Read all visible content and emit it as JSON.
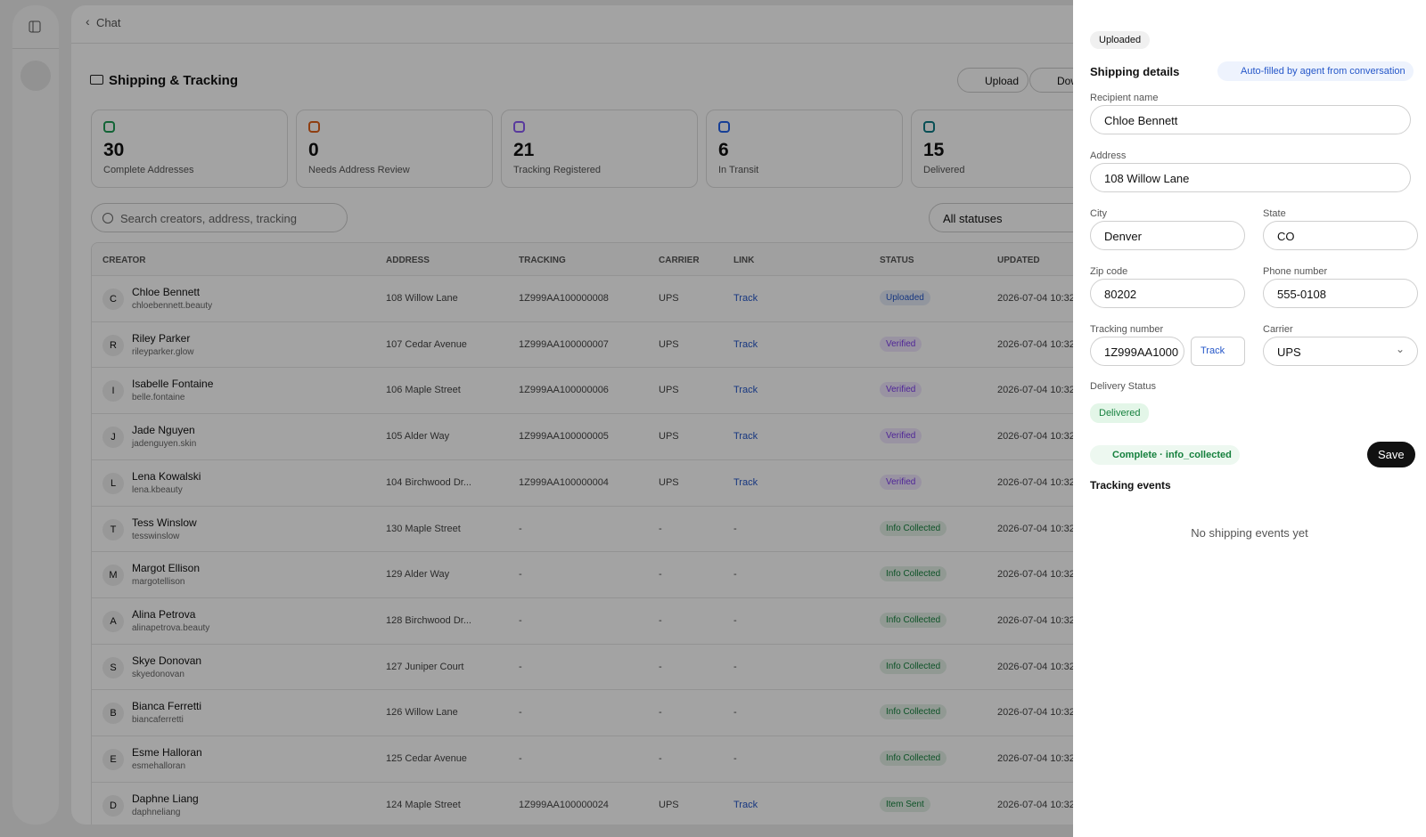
{
  "header": {
    "back": "Chat",
    "title": "Shipping & Tracking",
    "upload": "Upload",
    "download": "Download"
  },
  "stats": [
    {
      "value": "30",
      "label": "Complete Addresses",
      "color": "#1f9d55"
    },
    {
      "value": "0",
      "label": "Needs Address Review",
      "color": "#e0621b"
    },
    {
      "value": "21",
      "label": "Tracking Registered",
      "color": "#8b5cf6"
    },
    {
      "value": "6",
      "label": "In Transit",
      "color": "#2563eb"
    },
    {
      "value": "15",
      "label": "Delivered",
      "color": "#0e7c86"
    }
  ],
  "search": {
    "placeholder": "Search creators, address, tracking"
  },
  "filter": "All statuses",
  "table": {
    "columns": [
      "CREATOR",
      "ADDRESS",
      "TRACKING",
      "CARRIER",
      "LINK",
      "STATUS",
      "UPDATED"
    ],
    "rows": [
      {
        "initial": "C",
        "name": "Chloe Bennett",
        "handle": "chloebennett.beauty",
        "address": "108 Willow Lane",
        "tracking": "1Z999AA100000008",
        "carrier": "UPS",
        "link": "Track",
        "status": "Uploaded",
        "status_color": "#2557c9",
        "updated": "2026-07-04 10:32"
      },
      {
        "initial": "R",
        "name": "Riley Parker",
        "handle": "rileyparker.glow",
        "address": "107 Cedar Avenue",
        "tracking": "1Z999AA100000007",
        "carrier": "UPS",
        "link": "Track",
        "status": "Verified",
        "status_color": "#7c3aed",
        "updated": "2026-07-04 10:32"
      },
      {
        "initial": "I",
        "name": "Isabelle Fontaine",
        "handle": "belle.fontaine",
        "address": "106 Maple Street",
        "tracking": "1Z999AA100000006",
        "carrier": "UPS",
        "link": "Track",
        "status": "Verified",
        "status_color": "#7c3aed",
        "updated": "2026-07-04 10:32"
      },
      {
        "initial": "J",
        "name": "Jade Nguyen",
        "handle": "jadenguyen.skin",
        "address": "105 Alder Way",
        "tracking": "1Z999AA100000005",
        "carrier": "UPS",
        "link": "Track",
        "status": "Verified",
        "status_color": "#7c3aed",
        "updated": "2026-07-04 10:32"
      },
      {
        "initial": "L",
        "name": "Lena Kowalski",
        "handle": "lena.kbeauty",
        "address": "104 Birchwood Dr...",
        "tracking": "1Z999AA100000004",
        "carrier": "UPS",
        "link": "Track",
        "status": "Verified",
        "status_color": "#7c3aed",
        "updated": "2026-07-04 10:32"
      },
      {
        "initial": "T",
        "name": "Tess Winslow",
        "handle": "tesswinslow",
        "address": "130 Maple Street",
        "tracking": "-",
        "carrier": "-",
        "link": "-",
        "status": "Info Collected",
        "status_color": "#15803d",
        "updated": "2026-07-04 10:32"
      },
      {
        "initial": "M",
        "name": "Margot Ellison",
        "handle": "margotellison",
        "address": "129 Alder Way",
        "tracking": "-",
        "carrier": "-",
        "link": "-",
        "status": "Info Collected",
        "status_color": "#15803d",
        "updated": "2026-07-04 10:32"
      },
      {
        "initial": "A",
        "name": "Alina Petrova",
        "handle": "alinapetrova.beauty",
        "address": "128 Birchwood Dr...",
        "tracking": "-",
        "carrier": "-",
        "link": "-",
        "status": "Info Collected",
        "status_color": "#15803d",
        "updated": "2026-07-04 10:32"
      },
      {
        "initial": "S",
        "name": "Skye Donovan",
        "handle": "skyedonovan",
        "address": "127 Juniper Court",
        "tracking": "-",
        "carrier": "-",
        "link": "-",
        "status": "Info Collected",
        "status_color": "#15803d",
        "updated": "2026-07-04 10:32"
      },
      {
        "initial": "B",
        "name": "Bianca Ferretti",
        "handle": "biancaferretti",
        "address": "126 Willow Lane",
        "tracking": "-",
        "carrier": "-",
        "link": "-",
        "status": "Info Collected",
        "status_color": "#15803d",
        "updated": "2026-07-04 10:32"
      },
      {
        "initial": "E",
        "name": "Esme Halloran",
        "handle": "esmehalloran",
        "address": "125 Cedar Avenue",
        "tracking": "-",
        "carrier": "-",
        "link": "-",
        "status": "Info Collected",
        "status_color": "#15803d",
        "updated": "2026-07-04 10:32"
      },
      {
        "initial": "D",
        "name": "Daphne Liang",
        "handle": "daphneliang",
        "address": "124 Maple Street",
        "tracking": "1Z999AA100000024",
        "carrier": "UPS",
        "link": "Track",
        "status": "Item Sent",
        "status_color": "#15803d",
        "updated": "2026-07-04 10:32"
      }
    ]
  },
  "drawer": {
    "badge": "Uploaded",
    "title": "Shipping details",
    "autofill": "Auto-filled by agent from conversation",
    "recipient": {
      "label": "Recipient name",
      "value": "Chloe Bennett"
    },
    "address": {
      "label": "Address",
      "value": "108 Willow Lane"
    },
    "city": {
      "label": "City",
      "value": "Denver"
    },
    "state": {
      "label": "State",
      "value": "CO"
    },
    "zip": {
      "label": "Zip code",
      "value": "80202"
    },
    "phone": {
      "label": "Phone number",
      "value": "555-0108"
    },
    "tracking": {
      "label": "Tracking number",
      "value": "1Z999AA1000",
      "button": "Track"
    },
    "carrier": {
      "label": "Carrier",
      "value": "UPS"
    },
    "delivery": {
      "label": "Delivery Status",
      "value": "Delivered"
    },
    "complete": "Complete · info_collected",
    "save": "Save",
    "events_title": "Tracking events",
    "events_empty": "No shipping events yet"
  }
}
